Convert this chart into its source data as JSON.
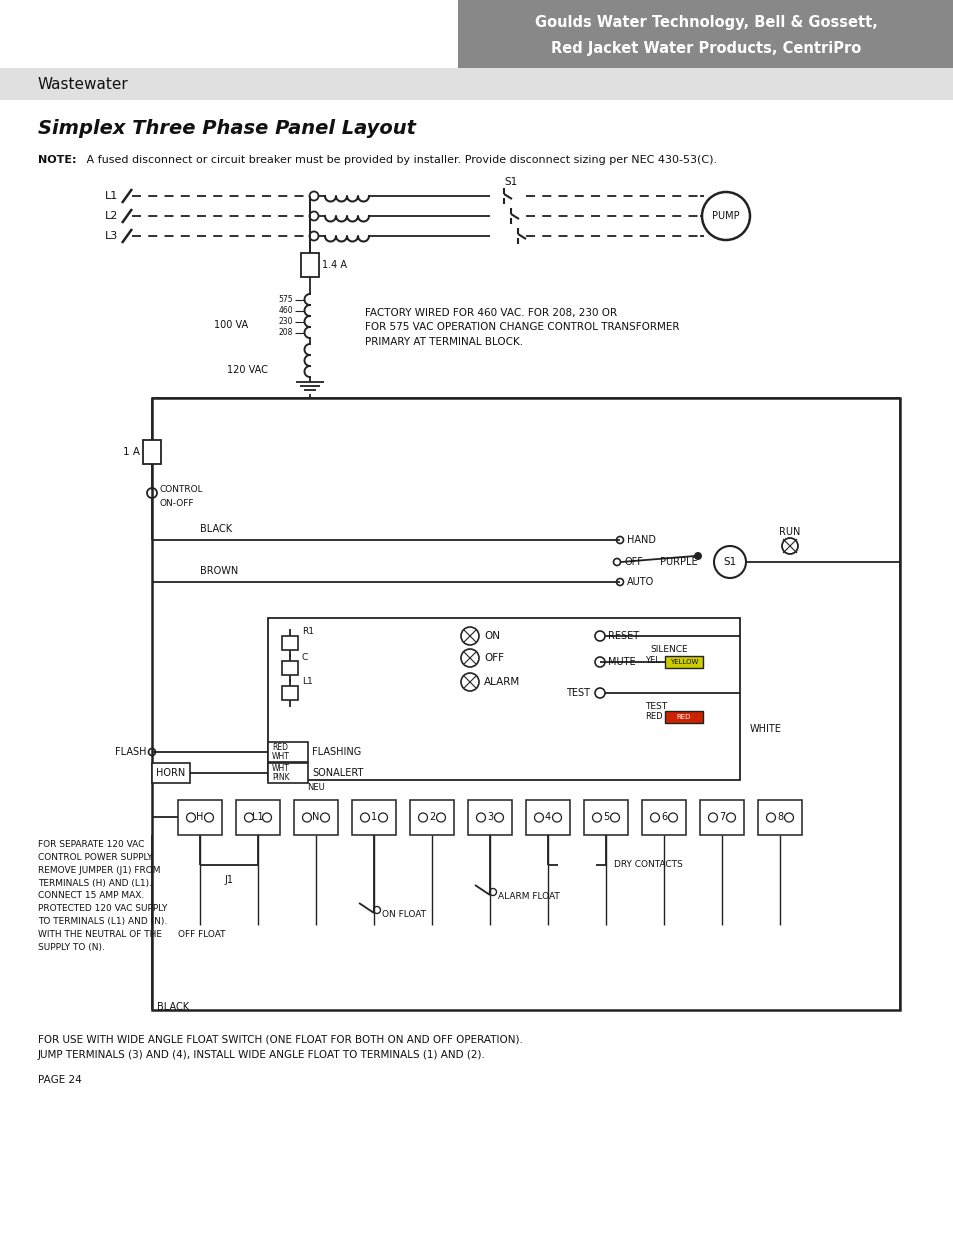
{
  "title": "Simplex Three Phase Panel Layout",
  "note_bold": "NOTE:",
  "note_rest": " A fused disconnect or circuit breaker must be provided by installer. Provide disconnect sizing per NEC 430-53(C).",
  "header_text1": "Goulds Water Technology, Bell & Gossett,",
  "header_text2": "Red Jacket Water Products, CentriPro",
  "subheader": "Wastewater",
  "footer": "PAGE 24",
  "footer2a": "FOR USE WITH WIDE ANGLE FLOAT SWITCH (ONE FLOAT FOR BOTH ON AND OFF OPERATION).",
  "footer2b": "JUMP TERMINALS (3) AND (4), INSTALL WIDE ANGLE FLOAT TO TERMINALS (1) AND (2).",
  "factory_note": "FACTORY WIRED FOR 460 VAC. FOR 208, 230 OR\nFOR 575 VAC OPERATION CHANGE CONTROL TRANSFORMER\nPRIMARY AT TERMINAL BLOCK.",
  "separate_note": "FOR SEPARATE 120 VAC\nCONTROL POWER SUPPLY\nREMOVE JUMPER (J1) FROM\nTERMINALS (H) AND (L1).\nCONNECT 15 AMP MAX.\nPROTECTED 120 VAC SUPPLY\nTO TERMINALS (L1) AND (N).\nWITH THE NEUTRAL OF THE\nSUPPLY TO (N).",
  "bg_color": "#ffffff",
  "header_bg": "#888888",
  "subheader_bg": "#e0e0e0",
  "line_color": "#222222",
  "text_color": "#111111",
  "tap_labels": [
    "575",
    "460",
    "230",
    "208"
  ],
  "term_labels": [
    "H",
    "L1",
    "N",
    "1",
    "2",
    "3",
    "4",
    "5",
    "6",
    "7",
    "8"
  ]
}
